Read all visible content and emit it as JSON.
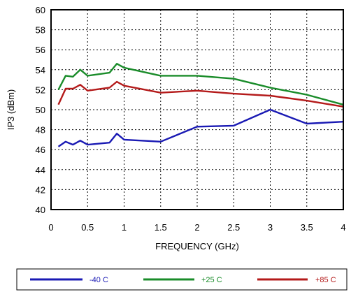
{
  "chart_data": {
    "type": "line",
    "title": "",
    "xlabel": "FREQUENCY (GHz)",
    "ylabel": "IP3 (dBm)",
    "xlim": [
      0,
      4
    ],
    "ylim": [
      40,
      60
    ],
    "x_ticks": [
      0,
      0.5,
      1,
      1.5,
      2,
      2.5,
      3,
      3.5,
      4
    ],
    "x_tick_labels": [
      "0",
      "0.5",
      "1",
      "1.5",
      "2",
      "2.5",
      "3",
      "3.5",
      "4"
    ],
    "y_ticks": [
      40,
      42,
      44,
      46,
      48,
      50,
      52,
      54,
      56,
      58,
      60
    ],
    "y_tick_labels": [
      "40",
      "42",
      "44",
      "46",
      "48",
      "50",
      "52",
      "54",
      "56",
      "58",
      "60"
    ],
    "grid": true,
    "grid_style": "dotted",
    "legend_position": "bottom",
    "series": [
      {
        "name": "-40 C",
        "color": "#1a1ab4",
        "x": [
          0.1,
          0.2,
          0.3,
          0.4,
          0.5,
          0.8,
          0.9,
          1.0,
          1.5,
          2.0,
          2.5,
          3.0,
          3.5,
          4.0
        ],
        "y": [
          46.3,
          46.8,
          46.5,
          46.9,
          46.5,
          46.7,
          47.6,
          47.0,
          46.8,
          48.3,
          48.4,
          50.0,
          48.6,
          48.8
        ]
      },
      {
        "name": "+25 C",
        "color": "#1a8c2a",
        "x": [
          0.1,
          0.2,
          0.3,
          0.4,
          0.5,
          0.8,
          0.9,
          1.0,
          1.5,
          2.0,
          2.5,
          3.0,
          3.5,
          4.0
        ],
        "y": [
          52.0,
          53.4,
          53.3,
          54.0,
          53.4,
          53.7,
          54.6,
          54.2,
          53.4,
          53.4,
          53.1,
          52.2,
          51.5,
          50.5
        ]
      },
      {
        "name": "+85 C",
        "color": "#b41a1a",
        "x": [
          0.1,
          0.2,
          0.3,
          0.4,
          0.5,
          0.8,
          0.9,
          1.0,
          1.5,
          2.0,
          2.5,
          3.0,
          3.5,
          4.0
        ],
        "y": [
          50.5,
          52.1,
          52.1,
          52.5,
          51.9,
          52.2,
          52.8,
          52.4,
          51.7,
          51.9,
          51.6,
          51.4,
          50.9,
          50.3
        ]
      }
    ]
  }
}
